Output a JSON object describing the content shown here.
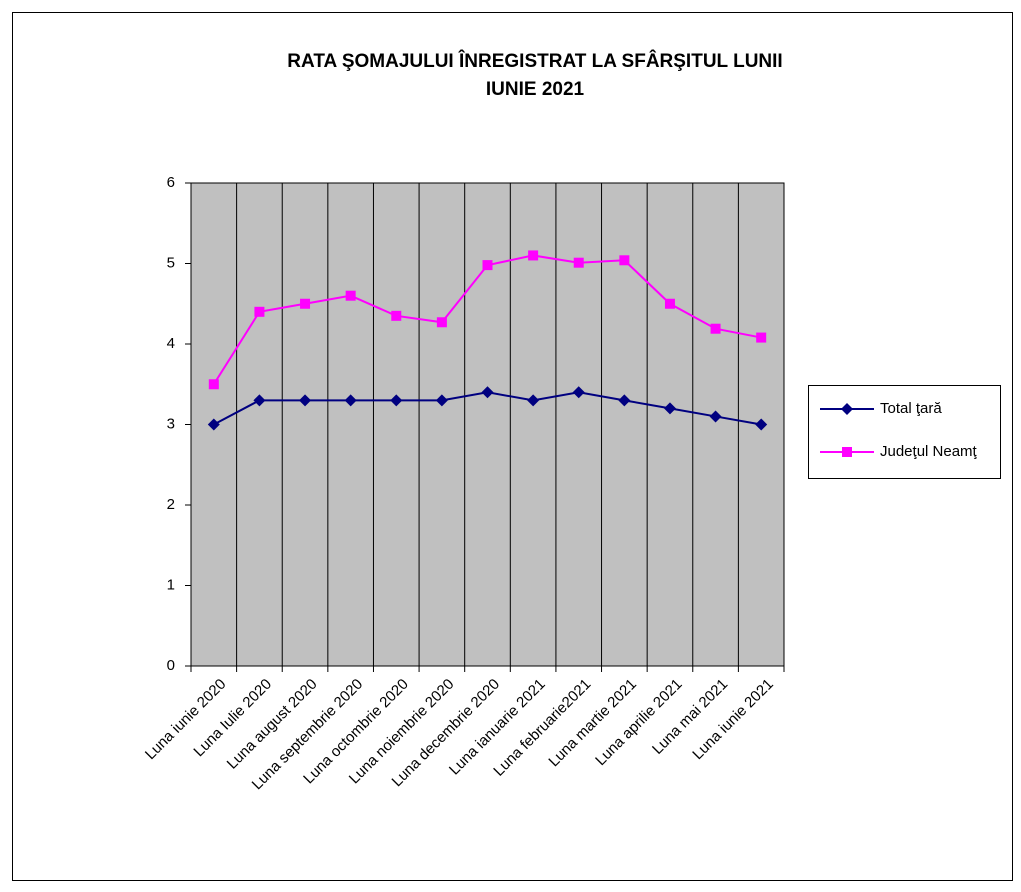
{
  "chart_data": {
    "type": "line",
    "title": [
      "RATA ŞOMAJULUI ÎNREGISTRAT LA SFÂRŞITUL LUNII",
      "IUNIE  2021"
    ],
    "categories": [
      "Luna iunie  2020",
      "Luna Iulie 2020",
      "Luna august 2020",
      "Luna septembrie 2020",
      "Luna octombrie 2020",
      "Luna noiembrie 2020",
      "Luna decembrie 2020",
      "Luna ianuarie 2021",
      "Luna februarie2021",
      "Luna martie 2021",
      "Luna aprilie 2021",
      "Luna mai  2021",
      "Luna iunie  2021"
    ],
    "series": [
      {
        "name": "Total ţară",
        "color": "#000080",
        "marker": "diamond",
        "values": [
          3.0,
          3.3,
          3.3,
          3.3,
          3.3,
          3.3,
          3.4,
          3.3,
          3.4,
          3.3,
          3.2,
          3.1,
          3.0
        ]
      },
      {
        "name": "Judeţul Neamţ",
        "color": "#ff00ff",
        "marker": "square",
        "values": [
          3.5,
          4.4,
          4.5,
          4.6,
          4.35,
          4.27,
          4.98,
          5.1,
          5.01,
          5.04,
          4.5,
          4.19,
          4.08
        ]
      }
    ],
    "ylim": [
      0,
      6
    ],
    "yticks": [
      0,
      1,
      2,
      3,
      4,
      5,
      6
    ],
    "grid": false,
    "plot_background": "#c0c0c0",
    "legend": "right"
  }
}
